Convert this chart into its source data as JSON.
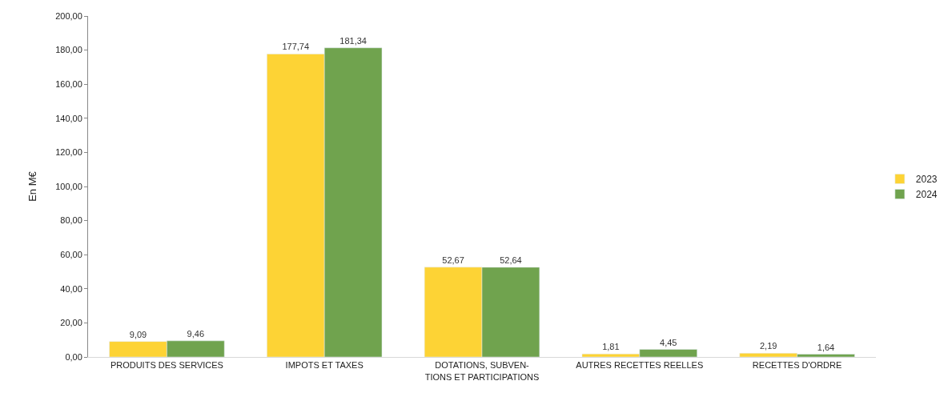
{
  "chart_data": {
    "type": "bar",
    "ylabel": "En M€",
    "categories": [
      "PRODUITS DES SERVICES",
      "IMPOTS ET TAXES",
      "DOTATIONS, SUBVEN-\nTIONS ET PARTICIPATIONS",
      "AUTRES RECETTES REELLES",
      "RECETTES D'ORDRE"
    ],
    "series": [
      {
        "name": "2023",
        "color": "#fdd335",
        "values": [
          9.09,
          177.74,
          52.67,
          1.81,
          2.19
        ],
        "value_labels": [
          "9,09",
          "177,74",
          "52,67",
          "1,81",
          "2,19"
        ]
      },
      {
        "name": "2024",
        "color": "#70a34e",
        "values": [
          9.46,
          181.34,
          52.64,
          4.45,
          1.64
        ],
        "value_labels": [
          "9,46",
          "181,34",
          "52,64",
          "4,45",
          "1,64"
        ]
      }
    ],
    "ylim": [
      0,
      200
    ],
    "yticks": [
      {
        "value": 0,
        "label": "0,00"
      },
      {
        "value": 20,
        "label": "20,00"
      },
      {
        "value": 40,
        "label": "40,00"
      },
      {
        "value": 60,
        "label": "60,00"
      },
      {
        "value": 80,
        "label": "80,00"
      },
      {
        "value": 100,
        "label": "100,00"
      },
      {
        "value": 120,
        "label": "120,00"
      },
      {
        "value": 140,
        "label": "140,00"
      },
      {
        "value": 160,
        "label": "160,00"
      },
      {
        "value": 180,
        "label": "180,00"
      },
      {
        "value": 200,
        "label": "200,00"
      }
    ],
    "legend": "right",
    "grid": false
  }
}
